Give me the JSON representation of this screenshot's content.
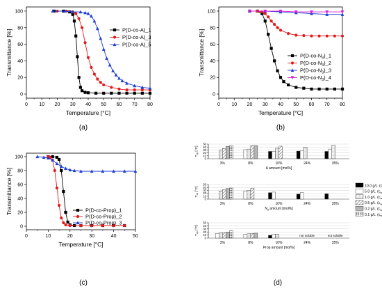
{
  "chart_data": [
    {
      "type": "line",
      "panel_label": "(a)",
      "xlabel": "Temperature [°C]",
      "ylabel": "Transmittance [%]",
      "xlim": [
        0,
        80
      ],
      "ylim": [
        -5,
        105
      ],
      "xticks": [
        0,
        10,
        20,
        30,
        40,
        50,
        60,
        70,
        80
      ],
      "yticks": [
        0,
        20,
        40,
        60,
        80,
        100
      ],
      "legend_position": "top-right",
      "series": [
        {
          "name": "P(D-co-A)_1",
          "color": "#000000",
          "marker": "square",
          "x": [
            18,
            24,
            28,
            30,
            31,
            32,
            33,
            34,
            35,
            36,
            38,
            40,
            45,
            50,
            55,
            60,
            65,
            70,
            75,
            80
          ],
          "y": [
            100,
            100,
            99,
            96,
            88,
            70,
            45,
            20,
            8,
            4,
            2,
            1.5,
            1,
            1,
            1,
            1,
            1,
            1,
            1,
            1
          ]
        },
        {
          "name": "P(D-co-A)_3",
          "color": "#e41a1c",
          "marker": "circle",
          "x": [
            20,
            26,
            30,
            32,
            34,
            36,
            38,
            40,
            42,
            44,
            46,
            48,
            50,
            55,
            60,
            65,
            70,
            75,
            80
          ],
          "y": [
            100,
            100,
            99,
            97,
            91,
            80,
            62,
            44,
            32,
            24,
            18,
            14,
            11,
            8,
            6,
            5,
            5,
            5,
            5
          ]
        },
        {
          "name": "P(D-co-A)_5",
          "color": "#1f3fd4",
          "marker": "triangle",
          "x": [
            17,
            25,
            30,
            35,
            38,
            40,
            42,
            44,
            46,
            48,
            50,
            52,
            54,
            56,
            58,
            60,
            62,
            65,
            70,
            75,
            80
          ],
          "y": [
            100,
            100,
            99,
            99,
            98,
            97,
            94,
            88,
            79,
            67,
            54,
            43,
            35,
            28,
            23,
            19,
            16,
            13,
            10,
            8,
            7
          ]
        }
      ]
    },
    {
      "type": "line",
      "panel_label": "(b)",
      "xlabel": "Temperature [°C]",
      "ylabel": "Transmittance [%]",
      "xlim": [
        0,
        80
      ],
      "ylim": [
        -5,
        105
      ],
      "xticks": [
        0,
        10,
        20,
        30,
        40,
        50,
        60,
        70,
        80
      ],
      "yticks": [
        0,
        20,
        40,
        60,
        80,
        100
      ],
      "legend_position": "bottom-right",
      "series": [
        {
          "name": "P(D-co-N",
          "name_sub": "3",
          "name_suffix": ")_1",
          "color": "#000000",
          "marker": "square",
          "x": [
            20,
            25,
            28,
            30,
            32,
            34,
            36,
            38,
            40,
            42,
            45,
            50,
            55,
            60,
            65,
            70,
            75,
            80
          ],
          "y": [
            100,
            100,
            97,
            88,
            72,
            55,
            40,
            28,
            20,
            15,
            11,
            8,
            7,
            6,
            6,
            6,
            6,
            6
          ]
        },
        {
          "name": "P(D-co-N",
          "name_sub": "3",
          "name_suffix": ")_2",
          "color": "#e41a1c",
          "marker": "circle",
          "x": [
            20,
            25,
            28,
            30,
            32,
            34,
            36,
            38,
            40,
            45,
            50,
            55,
            60,
            65,
            70,
            75,
            80
          ],
          "y": [
            100,
            100,
            99,
            97,
            93,
            88,
            84,
            80,
            77,
            73,
            71,
            70.5,
            70,
            70,
            70,
            70,
            70
          ]
        },
        {
          "name": "P(D-co-N",
          "name_sub": "3",
          "name_suffix": ")_3",
          "color": "#1f3fd4",
          "marker": "triangle",
          "x": [
            20,
            30,
            40,
            50,
            60,
            70,
            80
          ],
          "y": [
            100,
            100,
            99,
            98,
            97,
            96,
            96
          ]
        },
        {
          "name": "P(D-co-N",
          "name_sub": "3",
          "name_suffix": ")_4",
          "color": "#d61fd6",
          "marker": "triangle-down",
          "x": [
            20,
            30,
            40,
            50,
            60,
            70,
            80
          ],
          "y": [
            100,
            100,
            100,
            99,
            99,
            99,
            99
          ]
        }
      ]
    },
    {
      "type": "line",
      "panel_label": "(c)",
      "xlabel": "Temperature [°C]",
      "ylabel": "Transmittance [%]",
      "xlim": [
        0,
        50
      ],
      "ylim": [
        -5,
        105
      ],
      "xticks": [
        0,
        10,
        20,
        30,
        40,
        50
      ],
      "yticks": [
        0,
        20,
        40,
        60,
        80,
        100
      ],
      "legend_position": "center-right",
      "series": [
        {
          "name": "P(D-co-Prop)_1",
          "color": "#000000",
          "marker": "square",
          "x": [
            10,
            12,
            14,
            15,
            16,
            17,
            18,
            19,
            20,
            22,
            25,
            30,
            35,
            40,
            45
          ],
          "y": [
            100,
            100,
            99,
            96,
            80,
            50,
            20,
            6,
            2,
            1,
            1,
            1,
            1,
            1,
            1
          ]
        },
        {
          "name": "P(D-co-Prop)_2",
          "color": "#e41a1c",
          "marker": "circle",
          "x": [
            10,
            11,
            12,
            13,
            14,
            15,
            16,
            17,
            18,
            20,
            25,
            30,
            35,
            40,
            45
          ],
          "y": [
            100,
            99,
            95,
            80,
            55,
            30,
            12,
            5,
            2,
            1,
            1,
            1,
            1,
            1,
            1
          ]
        },
        {
          "name": "P(D-co-Prop)_3",
          "color": "#1f3fd4",
          "marker": "triangle",
          "x": [
            5,
            8,
            10,
            12,
            14,
            16,
            18,
            20,
            22,
            25,
            30,
            35,
            40,
            45,
            50
          ],
          "y": [
            100,
            99,
            98,
            95,
            90,
            86,
            83,
            81,
            80,
            79,
            79,
            79,
            79,
            79,
            79
          ]
        }
      ]
    },
    {
      "type": "bar",
      "panel_label": "(d)",
      "ylim": [
        0,
        50
      ],
      "yticks": [
        0,
        10,
        20,
        30,
        40,
        50
      ],
      "categories": [
        "3%",
        "8%",
        "10%",
        "24%",
        "35%"
      ],
      "legend": {
        "unit_prefix": "c",
        "unit_sub": "w",
        "entries": [
          {
            "label": "10.0 g/L",
            "fill": "black"
          },
          {
            "label": "5.0 g/L",
            "fill": "white"
          },
          {
            "label": "1.0 g/L",
            "fill": "light"
          },
          {
            "label": "0.5 g/L",
            "fill": "hatch"
          },
          {
            "label": "0.2 g/L",
            "fill": "grey"
          },
          {
            "label": "0.1 g/L",
            "fill": "dots"
          }
        ]
      },
      "rows": [
        {
          "ylabel_main": "T",
          "ylabel_sub": "cp",
          "ylabel_unit": "[°C]",
          "xlabel": "A amount [mol%]",
          "xlabel_sub": "",
          "groups": [
            [
              null,
              null,
              29,
              35,
              42,
              45
            ],
            [
              null,
              31,
              33,
              45,
              45,
              null
            ],
            [
              25,
              25,
              36,
              43,
              null,
              null
            ],
            [
              26,
              27,
              40,
              null,
              null,
              null
            ],
            [
              25,
              33,
              46,
              null,
              null,
              null
            ]
          ]
        },
        {
          "ylabel_main": "T",
          "ylabel_sub": "cp",
          "ylabel_unit": "[°C]",
          "xlabel": "N",
          "xlabel_sub": "3",
          "xlabel_suffix": " amount [mol%]",
          "groups": [
            [
              null,
              null,
              28,
              32,
              36,
              38
            ],
            [
              null,
              28,
              30,
              37,
              null,
              null
            ],
            [
              22,
              24,
              null,
              null,
              null,
              null
            ],
            [
              17,
              22,
              null,
              null,
              null,
              null
            ],
            [
              18,
              null,
              null,
              null,
              null,
              null
            ]
          ]
        },
        {
          "ylabel_main": "T",
          "ylabel_sub": "cp",
          "ylabel_unit": "[°C]",
          "xlabel": "Prop amount [mol%]",
          "xlabel_sub": "",
          "annotations": [
            "not soluble",
            "not soluble"
          ],
          "groups": [
            [
              null,
              15,
              17,
              18,
              20,
              24
            ],
            [
              null,
              13,
              14,
              15,
              16,
              null
            ],
            [
              9,
              12,
              13,
              null,
              null,
              null
            ],
            [
              null,
              null,
              null,
              null,
              null,
              null
            ],
            [
              null,
              null,
              null,
              null,
              null,
              null
            ]
          ]
        }
      ]
    }
  ]
}
